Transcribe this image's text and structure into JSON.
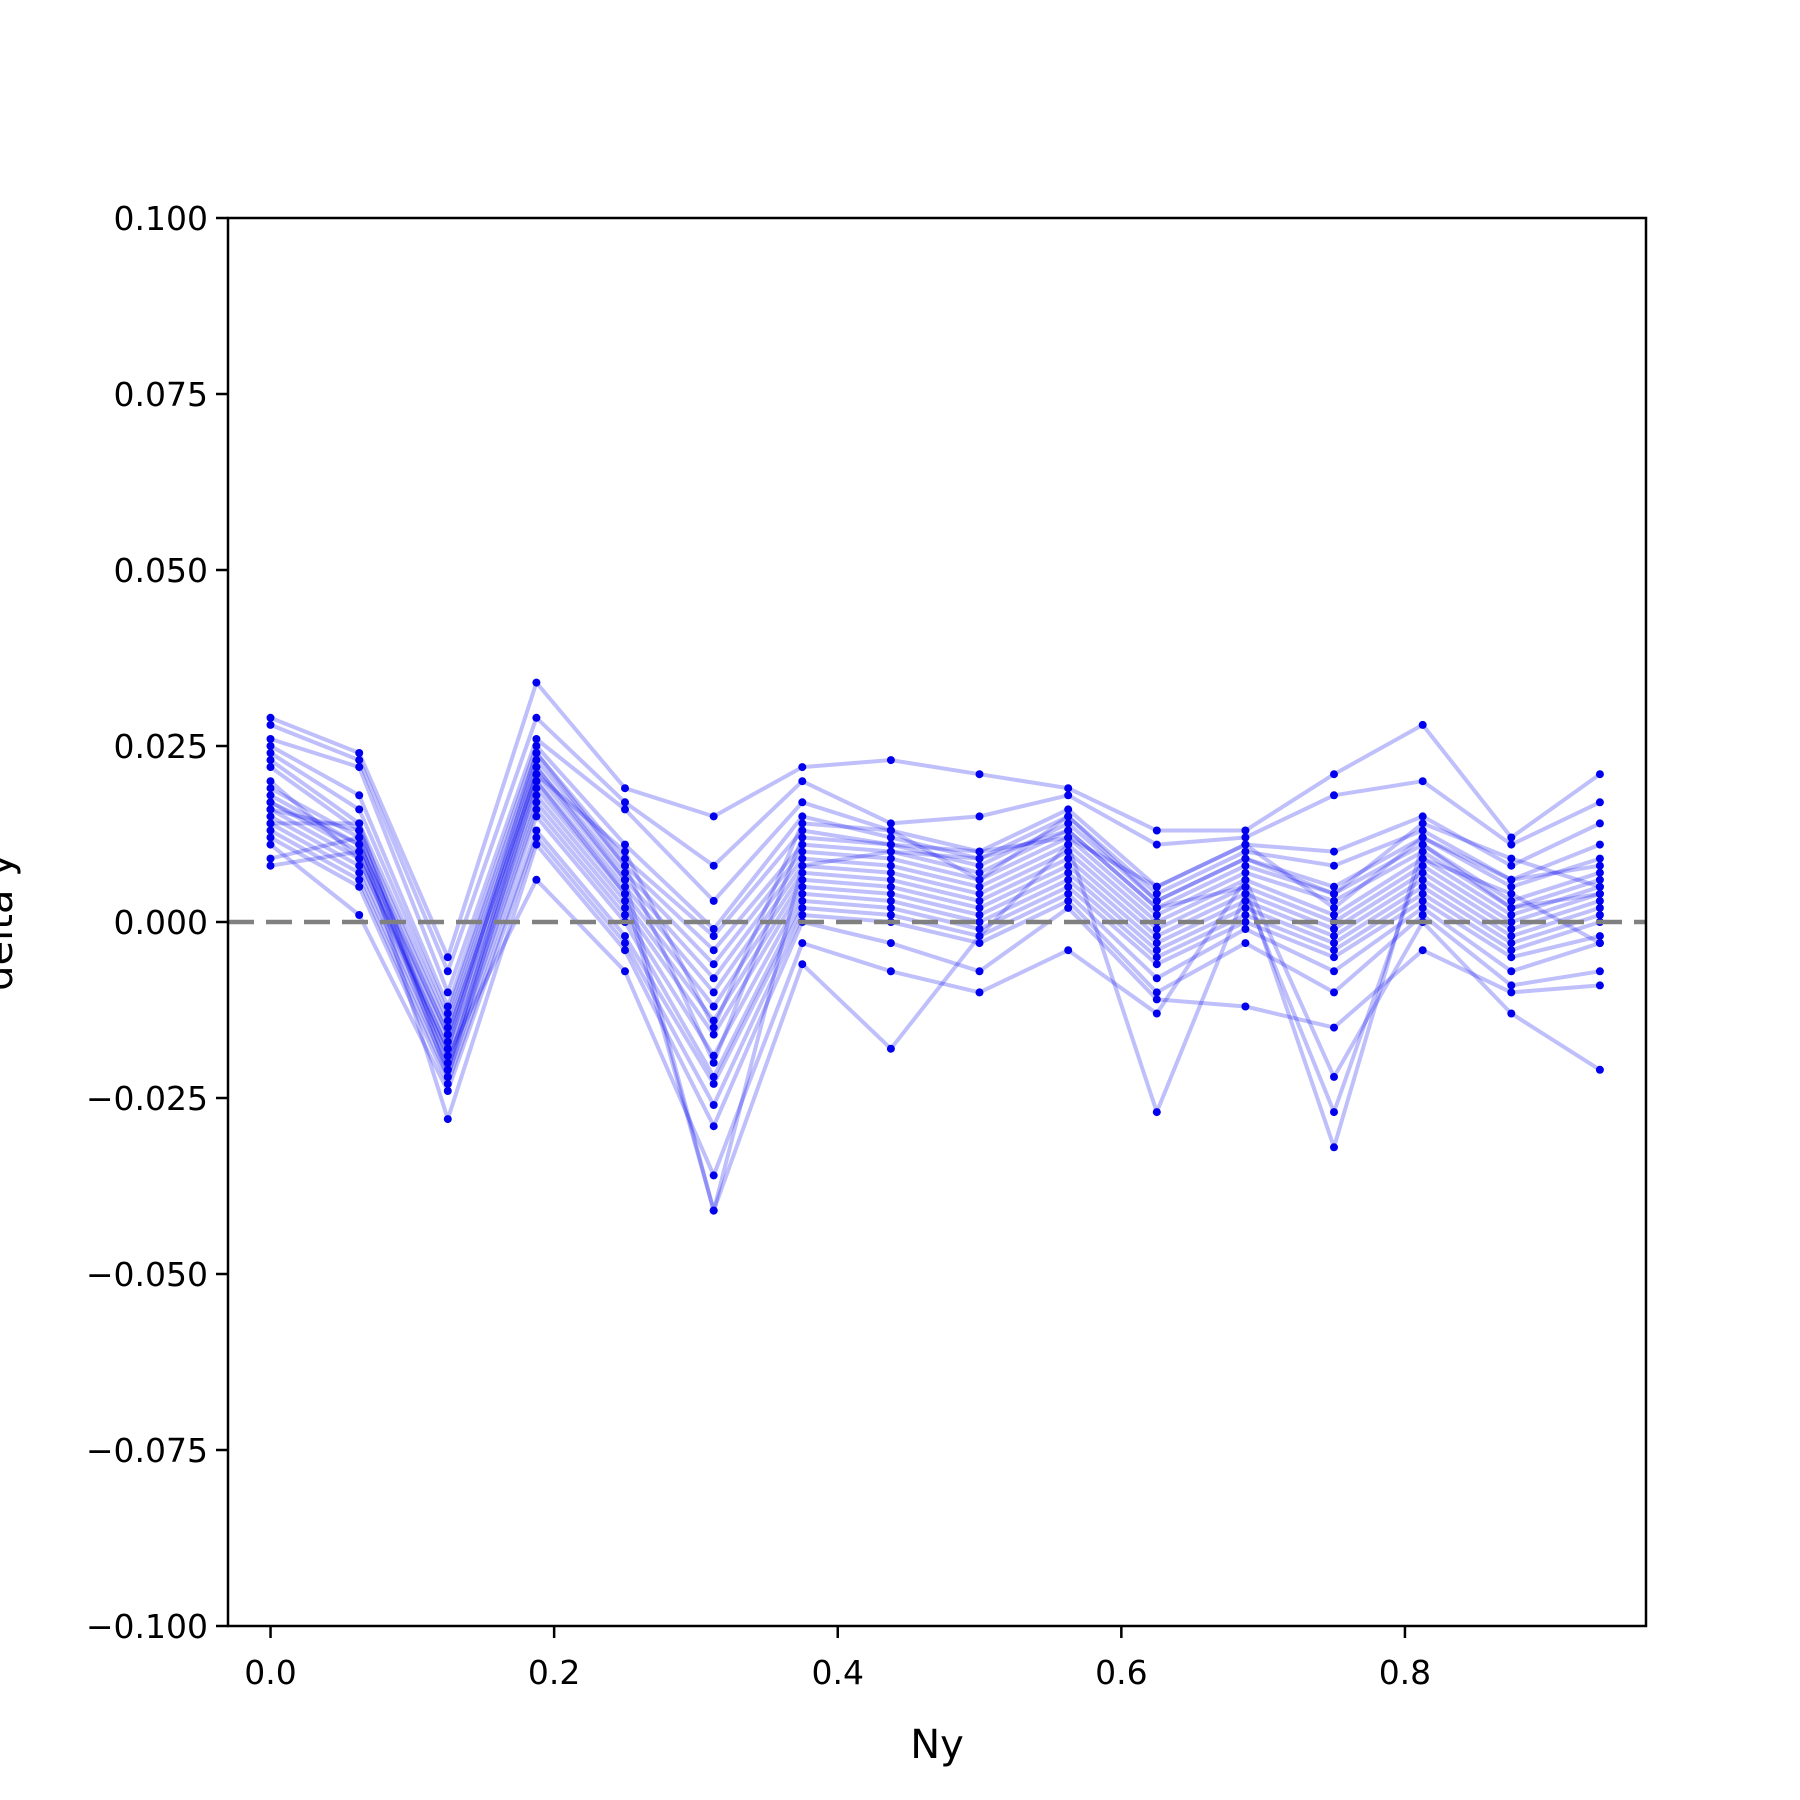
{
  "chart_data": {
    "type": "line",
    "title": "",
    "xlabel": "Ny",
    "ylabel": "delta y",
    "xlim": [
      -0.03,
      0.97
    ],
    "ylim": [
      -0.1,
      0.1
    ],
    "xticks": [
      0.0,
      0.2,
      0.4,
      0.6,
      0.8
    ],
    "xtick_labels": [
      "0.0",
      "0.2",
      "0.4",
      "0.6",
      "0.8"
    ],
    "yticks": [
      0.1,
      0.075,
      0.05,
      0.025,
      0.0,
      -0.025,
      -0.05,
      -0.075,
      -0.1
    ],
    "ytick_labels": [
      "0.100",
      "0.075",
      "0.050",
      "0.025",
      "0.000",
      "−0.025",
      "−0.050",
      "−0.075",
      "−0.100"
    ],
    "grid": false,
    "legend": "none",
    "reference_line": {
      "y": 0.0,
      "style": "dashed",
      "color": "#808080"
    },
    "x": [
      0.0,
      0.0625,
      0.125,
      0.1875,
      0.25,
      0.3125,
      0.375,
      0.4375,
      0.5,
      0.5625,
      0.625,
      0.6875,
      0.75,
      0.8125,
      0.875,
      0.9375
    ],
    "series_color": "#0000ee",
    "series": [
      {
        "values": [
          0.029,
          0.024,
          -0.005,
          0.034,
          0.019,
          0.015,
          0.022,
          0.023,
          0.021,
          0.019,
          0.013,
          0.013,
          0.021,
          0.028,
          0.012,
          0.021
        ]
      },
      {
        "values": [
          0.028,
          0.023,
          -0.007,
          0.029,
          0.017,
          0.008,
          0.02,
          0.014,
          0.015,
          0.018,
          0.011,
          0.012,
          0.018,
          0.02,
          0.011,
          0.017
        ]
      },
      {
        "values": [
          0.026,
          0.022,
          -0.01,
          0.026,
          0.016,
          0.003,
          0.017,
          0.013,
          0.01,
          0.016,
          0.005,
          0.011,
          0.01,
          0.015,
          0.008,
          0.014
        ]
      },
      {
        "values": [
          0.025,
          0.018,
          -0.012,
          0.025,
          0.011,
          -0.001,
          0.015,
          0.012,
          0.009,
          0.015,
          0.004,
          0.01,
          0.008,
          0.013,
          0.006,
          0.011
        ]
      },
      {
        "values": [
          0.024,
          0.016,
          -0.013,
          0.024,
          0.009,
          -0.002,
          0.013,
          0.011,
          0.008,
          0.014,
          0.003,
          0.009,
          0.005,
          0.012,
          0.005,
          0.009
        ]
      },
      {
        "values": [
          0.023,
          0.014,
          -0.014,
          0.023,
          0.008,
          -0.004,
          0.011,
          0.01,
          0.007,
          0.013,
          0.002,
          0.008,
          0.004,
          0.011,
          0.003,
          0.007
        ]
      },
      {
        "values": [
          0.022,
          0.013,
          -0.015,
          0.022,
          0.007,
          -0.006,
          0.01,
          0.009,
          0.006,
          0.012,
          0.001,
          0.007,
          0.003,
          0.01,
          0.002,
          0.006
        ]
      },
      {
        "values": [
          0.019,
          0.012,
          -0.016,
          0.021,
          0.006,
          -0.008,
          0.009,
          0.008,
          0.005,
          0.011,
          0.0,
          0.006,
          0.001,
          0.009,
          0.001,
          0.005
        ]
      },
      {
        "values": [
          0.018,
          0.011,
          -0.017,
          0.02,
          0.005,
          -0.01,
          0.008,
          0.007,
          0.004,
          0.01,
          -0.001,
          0.005,
          0.0,
          0.008,
          0.0,
          0.004
        ]
      },
      {
        "values": [
          0.017,
          0.01,
          -0.018,
          0.019,
          0.004,
          -0.012,
          0.007,
          0.006,
          0.003,
          0.009,
          -0.002,
          0.004,
          -0.001,
          0.007,
          -0.001,
          0.003
        ]
      },
      {
        "values": [
          0.016,
          0.009,
          -0.019,
          0.018,
          0.003,
          -0.014,
          0.006,
          0.005,
          0.002,
          0.008,
          -0.003,
          0.003,
          -0.002,
          0.006,
          -0.002,
          0.002
        ]
      },
      {
        "values": [
          0.015,
          0.008,
          -0.02,
          0.017,
          0.002,
          -0.016,
          0.005,
          0.004,
          0.001,
          0.007,
          -0.004,
          0.002,
          -0.003,
          0.005,
          -0.003,
          0.001
        ]
      },
      {
        "values": [
          0.014,
          0.007,
          -0.021,
          0.016,
          0.001,
          -0.019,
          0.004,
          0.003,
          0.0,
          0.006,
          -0.005,
          0.001,
          -0.004,
          0.004,
          -0.004,
          0.0
        ]
      },
      {
        "values": [
          0.013,
          0.006,
          -0.022,
          0.015,
          0.0,
          -0.022,
          0.003,
          0.002,
          -0.001,
          0.005,
          -0.006,
          0.0,
          -0.005,
          0.003,
          -0.005,
          -0.002
        ]
      },
      {
        "values": [
          0.012,
          0.005,
          -0.023,
          0.013,
          -0.002,
          -0.023,
          0.002,
          0.001,
          -0.002,
          0.004,
          -0.008,
          -0.001,
          -0.007,
          0.002,
          -0.007,
          -0.003
        ]
      },
      {
        "values": [
          0.011,
          0.001,
          -0.024,
          0.012,
          -0.003,
          -0.026,
          0.001,
          0.0,
          -0.003,
          0.003,
          -0.01,
          -0.003,
          -0.01,
          0.001,
          -0.009,
          -0.007
        ]
      },
      {
        "values": [
          0.009,
          0.012,
          -0.028,
          0.011,
          -0.004,
          -0.029,
          0.0,
          -0.003,
          -0.007,
          0.002,
          -0.011,
          -0.012,
          -0.015,
          -0.004,
          -0.01,
          -0.009
        ]
      },
      {
        "values": [
          0.008,
          0.01,
          -0.019,
          0.006,
          -0.007,
          -0.036,
          -0.003,
          -0.007,
          -0.01,
          -0.004,
          -0.013,
          0.006,
          -0.022,
          0.0,
          -0.013,
          -0.021
        ]
      },
      {
        "values": [
          0.014,
          0.014,
          -0.021,
          0.022,
          0.006,
          -0.041,
          -0.006,
          -0.018,
          -0.002,
          0.011,
          -0.027,
          0.004,
          -0.027,
          0.009,
          0.004,
          -0.003
        ]
      },
      {
        "values": [
          0.016,
          0.013,
          -0.022,
          0.02,
          0.004,
          -0.041,
          0.008,
          0.01,
          0.009,
          0.013,
          0.002,
          0.005,
          -0.032,
          0.011,
          0.002,
          0.004
        ]
      },
      {
        "values": [
          0.02,
          0.009,
          -0.018,
          0.024,
          0.008,
          -0.02,
          0.012,
          0.011,
          0.01,
          0.012,
          0.005,
          0.011,
          0.002,
          0.012,
          0.006,
          0.008
        ]
      },
      {
        "values": [
          0.017,
          0.011,
          -0.016,
          0.021,
          0.01,
          -0.015,
          0.014,
          0.013,
          0.006,
          0.015,
          0.003,
          0.009,
          0.004,
          0.014,
          0.009,
          0.005
        ]
      }
    ]
  }
}
